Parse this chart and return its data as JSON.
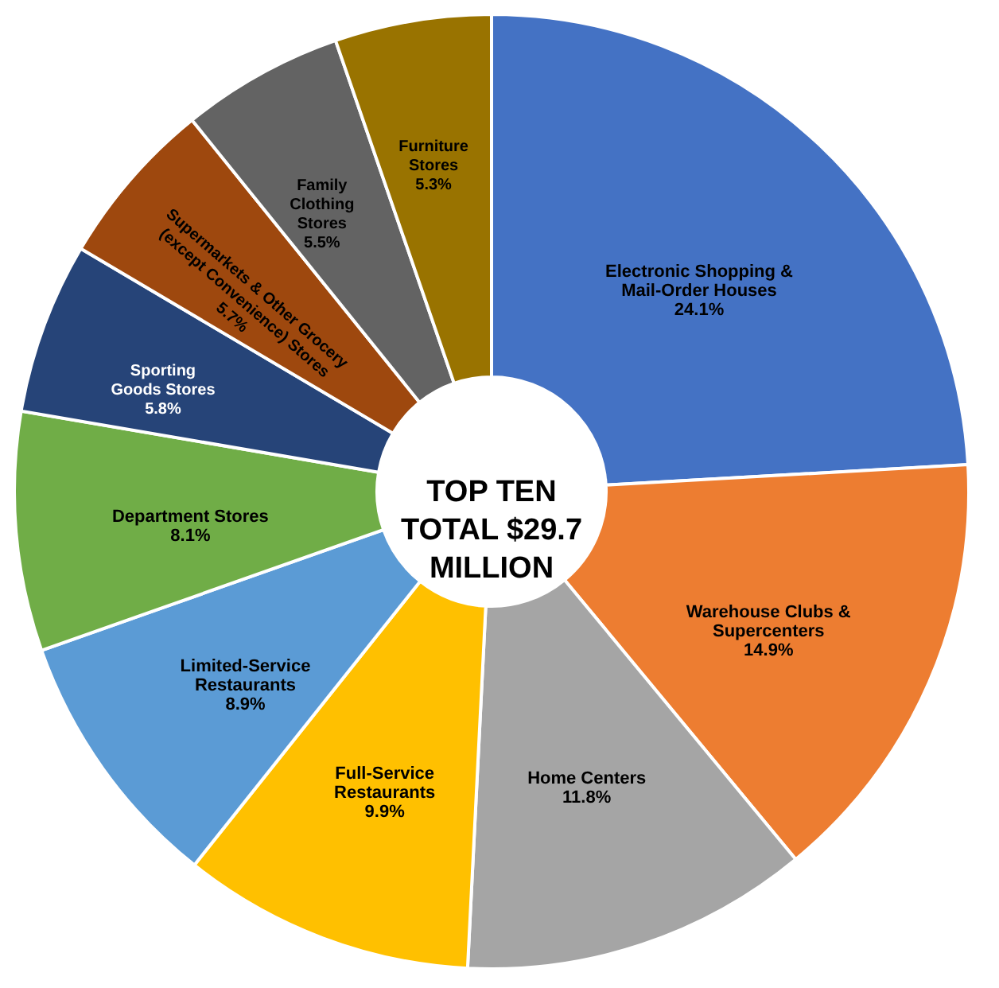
{
  "chart_data": {
    "type": "donut",
    "categories": [
      "Electronic Shopping & Mail-Order Houses",
      "Warehouse Clubs & Supercenters",
      "Home Centers",
      "Full-Service Restaurants",
      "Limited-Service Restaurants",
      "Department Stores",
      "Sporting Goods Stores",
      "Supermarkets & Other Grocery (except Convenience) Stores",
      "Family Clothing Stores",
      "Furniture Stores"
    ],
    "values": [
      24.1,
      14.9,
      11.8,
      9.9,
      8.9,
      8.1,
      5.8,
      5.7,
      5.5,
      5.3
    ],
    "value_labels": [
      "24.1%",
      "14.9%",
      "11.8%",
      "9.9%",
      "8.9%",
      "8.1%",
      "5.8%",
      "5.7%",
      "5.5%",
      "5.3%"
    ],
    "colors": [
      "#4472c4",
      "#ed7d31",
      "#a5a5a5",
      "#ffc000",
      "#5b9bd5",
      "#70ad47",
      "#264478",
      "#9e480e",
      "#636363",
      "#997300"
    ],
    "annotations": [
      "TOP TEN\nTOTAL $29.7\nMILLION"
    ],
    "legend": false
  }
}
